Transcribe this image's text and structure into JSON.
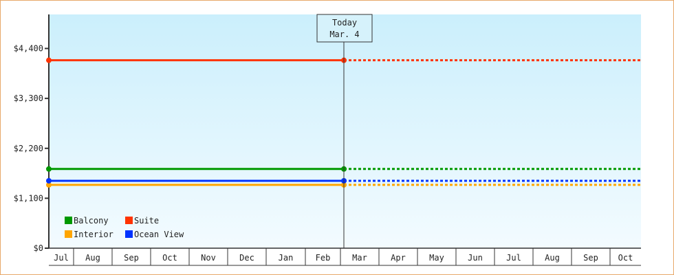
{
  "chart_data": {
    "type": "line",
    "title": "",
    "xlabel": "",
    "ylabel": "",
    "x_categories": [
      "Jul",
      "Aug",
      "Sep",
      "Oct",
      "Nov",
      "Dec",
      "Jan",
      "Feb",
      "Mar",
      "Apr",
      "May",
      "Jun",
      "Jul",
      "Aug",
      "Sep",
      "Oct"
    ],
    "yticks": [
      0,
      1100,
      2200,
      3300,
      4400
    ],
    "ytick_labels": [
      "$0",
      "$1,100",
      "$2,200",
      "$3,300",
      "$4,400"
    ],
    "ylim": [
      0,
      5150
    ],
    "today_marker": {
      "line1": "Today",
      "line2": "Mar. 4"
    },
    "legend_position": "bottom-left",
    "grid": false,
    "series": [
      {
        "name": "Balcony",
        "color": "#009900",
        "value": 1745
      },
      {
        "name": "Suite",
        "color": "#ff3300",
        "value": 4140
      },
      {
        "name": "Interior",
        "color": "#ffa500",
        "value": 1395
      },
      {
        "name": "Ocean View",
        "color": "#0033ff",
        "value": 1485
      }
    ],
    "notes_style": {
      "historical": "solid",
      "projection": "dotted"
    }
  }
}
